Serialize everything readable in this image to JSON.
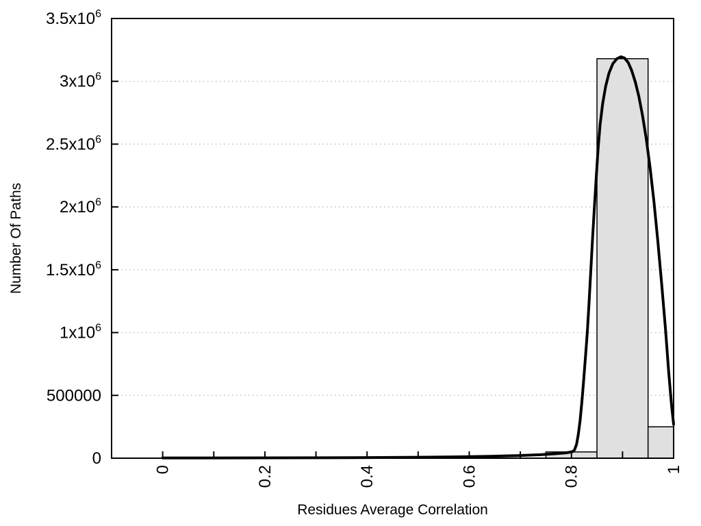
{
  "chart_data": {
    "type": "bar",
    "subtype": "histogram_with_fitted_line",
    "title": "",
    "xlabel": "Residues Average Correlation",
    "ylabel": "Number Of Paths",
    "xlim": [
      -0.1,
      1.0
    ],
    "ylim": [
      0,
      3500000
    ],
    "grid": "horizontal-dotted",
    "legend": "none",
    "colors": {
      "background": "#ffffff",
      "bar_fill": "#e0e0e0",
      "bar_border": "#000000",
      "curve": "#000000",
      "grid": "#bbbbbb",
      "axis": "#000000"
    },
    "x_ticks": [
      {
        "value": 0,
        "label": "0"
      },
      {
        "value": 0.1,
        "label": ""
      },
      {
        "value": 0.2,
        "label": "0.2"
      },
      {
        "value": 0.3,
        "label": ""
      },
      {
        "value": 0.4,
        "label": "0.4"
      },
      {
        "value": 0.5,
        "label": ""
      },
      {
        "value": 0.6,
        "label": "0.6"
      },
      {
        "value": 0.7,
        "label": ""
      },
      {
        "value": 0.8,
        "label": "0.8"
      },
      {
        "value": 0.9,
        "label": ""
      },
      {
        "value": 1.0,
        "label": "1"
      }
    ],
    "y_ticks": [
      {
        "value": 0,
        "base": "0",
        "sup": ""
      },
      {
        "value": 500000,
        "base": "500000",
        "sup": ""
      },
      {
        "value": 1000000,
        "base": "1x10",
        "sup": "6"
      },
      {
        "value": 1500000,
        "base": "1.5x10",
        "sup": "6"
      },
      {
        "value": 2000000,
        "base": "2x10",
        "sup": "6"
      },
      {
        "value": 2500000,
        "base": "2.5x10",
        "sup": "6"
      },
      {
        "value": 3000000,
        "base": "3x10",
        "sup": "6"
      },
      {
        "value": 3500000,
        "base": "3.5x10",
        "sup": "6"
      }
    ],
    "bars": [
      {
        "x_start": 0.75,
        "x_end": 0.85,
        "count": 50000
      },
      {
        "x_start": 0.85,
        "x_end": 0.95,
        "count": 3180000
      },
      {
        "x_start": 0.95,
        "x_end": 1.0,
        "count": 250000
      }
    ],
    "curve_points": [
      [
        0.0,
        2000
      ],
      [
        0.1,
        2000
      ],
      [
        0.2,
        2500
      ],
      [
        0.3,
        3500
      ],
      [
        0.4,
        5000
      ],
      [
        0.5,
        7500
      ],
      [
        0.58,
        11000
      ],
      [
        0.64,
        15000
      ],
      [
        0.7,
        21000
      ],
      [
        0.74,
        28000
      ],
      [
        0.77,
        36000
      ],
      [
        0.79,
        43000
      ],
      [
        0.802,
        52000
      ],
      [
        0.806,
        66000
      ],
      [
        0.81,
        110000
      ],
      [
        0.8135,
        190000
      ],
      [
        0.817,
        300000
      ],
      [
        0.8205,
        450000
      ],
      [
        0.824,
        620000
      ],
      [
        0.8275,
        810000
      ],
      [
        0.831,
        1000000
      ],
      [
        0.8345,
        1240000
      ],
      [
        0.838,
        1500000
      ],
      [
        0.8415,
        1760000
      ],
      [
        0.845,
        2000000
      ],
      [
        0.8485,
        2230000
      ],
      [
        0.852,
        2450000
      ],
      [
        0.856,
        2650000
      ],
      [
        0.861,
        2820000
      ],
      [
        0.867,
        2960000
      ],
      [
        0.8735,
        3065000
      ],
      [
        0.881,
        3140000
      ],
      [
        0.889,
        3180000
      ],
      [
        0.897,
        3195000
      ],
      [
        0.904,
        3185000
      ],
      [
        0.911,
        3150000
      ],
      [
        0.918,
        3085000
      ],
      [
        0.925,
        2995000
      ],
      [
        0.932,
        2880000
      ],
      [
        0.939,
        2730000
      ],
      [
        0.9465,
        2540000
      ],
      [
        0.954,
        2310000
      ],
      [
        0.9615,
        2040000
      ],
      [
        0.969,
        1730000
      ],
      [
        0.9765,
        1390000
      ],
      [
        0.984,
        1030000
      ],
      [
        0.9905,
        680000
      ],
      [
        0.996,
        420000
      ],
      [
        1.0,
        270000
      ]
    ]
  }
}
